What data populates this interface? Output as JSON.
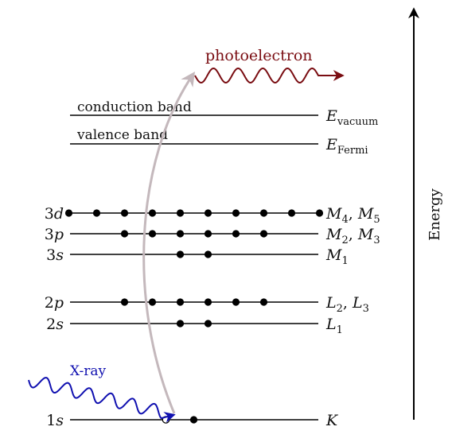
{
  "colors": {
    "line": "#000000",
    "photoelectron": "#7a0d12",
    "xray": "#1010b0",
    "transition_arrow": "#c4b8bc"
  },
  "photoelectron_label": "photoelectron",
  "xray_label": "X-ray",
  "energy_axis_label": "Energy",
  "bands": [
    {
      "id": "conduction",
      "text": "conduction band",
      "right_main": "E",
      "right_sub": "vacuum"
    },
    {
      "id": "valence",
      "text": "valence band",
      "right_main": "E",
      "right_sub": "Fermi"
    }
  ],
  "levels": [
    {
      "id": "3d",
      "left_num": "3",
      "left_letter": "d",
      "right": [
        [
          "M",
          "4"
        ],
        [
          "M",
          "5"
        ]
      ],
      "electrons": 10,
      "empty": 0
    },
    {
      "id": "3p",
      "left_num": "3",
      "left_letter": "p",
      "right": [
        [
          "M",
          "2"
        ],
        [
          "M",
          "3"
        ]
      ],
      "electrons": 6,
      "empty": 0
    },
    {
      "id": "3s",
      "left_num": "3",
      "left_letter": "s",
      "right": [
        [
          "M",
          "1"
        ]
      ],
      "electrons": 2,
      "empty": 0
    },
    {
      "id": "2p",
      "left_num": "2",
      "left_letter": "p",
      "right": [
        [
          "L",
          "2"
        ],
        [
          "L",
          "3"
        ]
      ],
      "electrons": 6,
      "empty": 0
    },
    {
      "id": "2s",
      "left_num": "2",
      "left_letter": "s",
      "right": [
        [
          "L",
          "1"
        ]
      ],
      "electrons": 2,
      "empty": 0
    },
    {
      "id": "1s",
      "left_num": "1",
      "left_letter": "s",
      "right": [
        [
          "K",
          ""
        ]
      ],
      "electrons": 1,
      "empty": 1
    }
  ]
}
